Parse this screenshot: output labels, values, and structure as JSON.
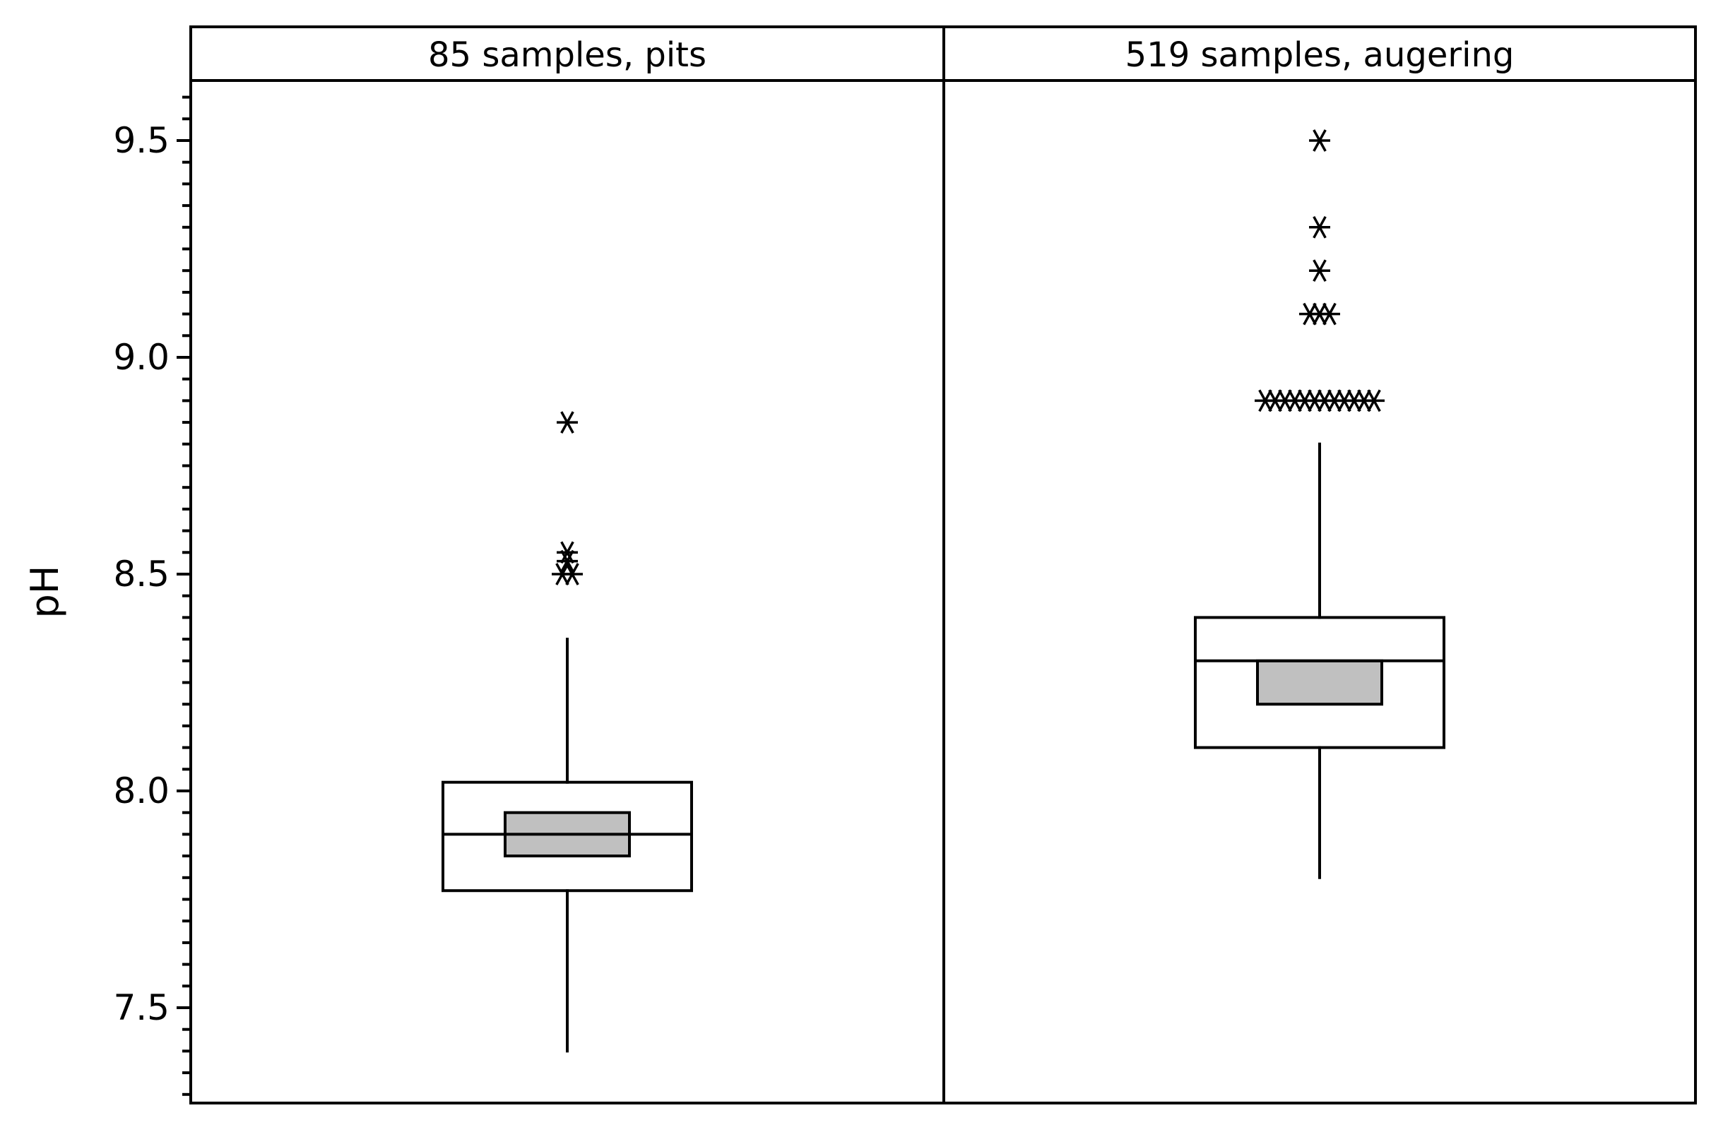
{
  "chart_data": {
    "type": "boxplot",
    "ylabel": "pH",
    "yticks": [
      "7.5",
      "8.0",
      "8.5",
      "9.0",
      "9.5"
    ],
    "ylim": [
      7.26,
      9.66
    ],
    "grid": false,
    "fill_color": "#c0c0c0",
    "line_color": "#000000",
    "panels": [
      {
        "label": "85 samples, pits",
        "n": 85,
        "whisker_low": 7.4,
        "q1": 7.77,
        "median": 7.9,
        "q3": 8.02,
        "whisker_high": 8.35,
        "median_ci": [
          7.85,
          7.95
        ],
        "outliers": [
          8.5,
          8.5,
          8.53,
          8.55,
          8.85
        ]
      },
      {
        "label": "519 samples, augering",
        "n": 519,
        "whisker_low": 7.8,
        "q1": 8.1,
        "median": 8.3,
        "q3": 8.4,
        "whisker_high": 8.8,
        "median_ci": [
          8.2,
          8.3
        ],
        "outliers": [
          8.9,
          8.9,
          8.9,
          8.9,
          8.9,
          8.9,
          8.9,
          8.9,
          8.9,
          8.9,
          8.9,
          8.9,
          9.1,
          9.1,
          9.1,
          9.2,
          9.3,
          9.5
        ]
      }
    ]
  }
}
